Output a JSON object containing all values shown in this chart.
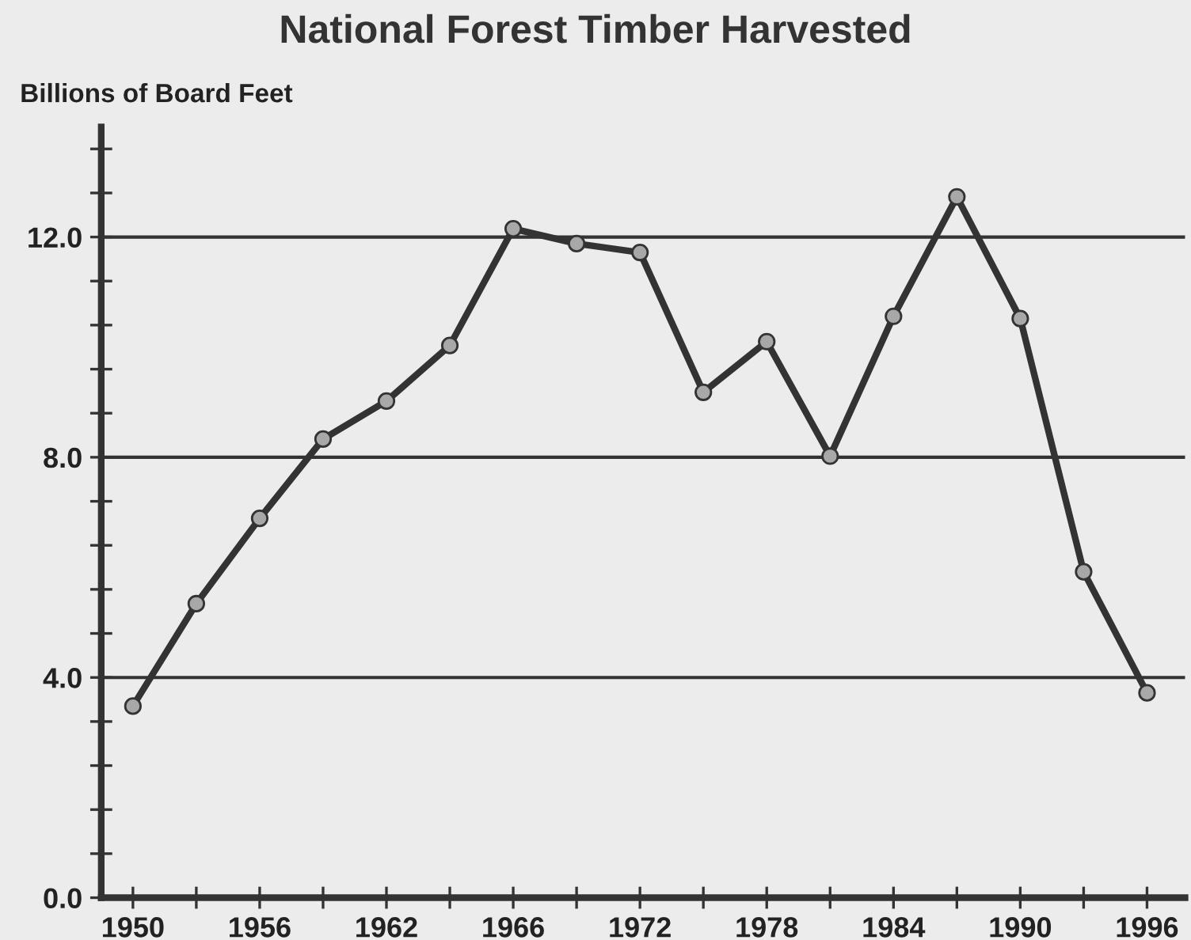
{
  "chart_data": {
    "type": "line",
    "title": "National Forest Timber Harvested",
    "ylabel": "Billions of Board Feet",
    "categories": [
      "1950",
      null,
      "1956",
      null,
      "1962",
      null,
      "1966",
      null,
      "1972",
      null,
      "1978",
      null,
      "1984",
      null,
      "1990",
      null,
      "1996"
    ],
    "series": [
      {
        "color": "#333333",
        "values": [
          3.48,
          5.34,
          6.89,
          8.33,
          9.02,
          10.03,
          12.15,
          11.88,
          11.72,
          9.18,
          10.1,
          8.02,
          10.56,
          12.73,
          10.52,
          5.92,
          3.72
        ]
      }
    ],
    "ylim": [
      0,
      14
    ],
    "yticks": [
      {
        "value": 0,
        "label": "0.0"
      },
      {
        "value": 0.8,
        "label": null
      },
      {
        "value": 1.6,
        "label": null
      },
      {
        "value": 2.4,
        "label": null
      },
      {
        "value": 3.2,
        "label": null
      },
      {
        "value": 4,
        "label": "4.0"
      },
      {
        "value": 4.8,
        "label": null
      },
      {
        "value": 5.6,
        "label": null
      },
      {
        "value": 6.4,
        "label": null
      },
      {
        "value": 7.2,
        "label": null
      },
      {
        "value": 8,
        "label": "8.0"
      },
      {
        "value": 8.8,
        "label": null
      },
      {
        "value": 9.6,
        "label": null
      },
      {
        "value": 10.4,
        "label": null
      },
      {
        "value": 11.2,
        "label": null
      },
      {
        "value": 12,
        "label": "12.0"
      },
      {
        "value": 12.8,
        "label": null
      },
      {
        "value": 13.6,
        "label": null
      }
    ],
    "grid": "y",
    "marker": "circle",
    "line_style": "solid"
  }
}
